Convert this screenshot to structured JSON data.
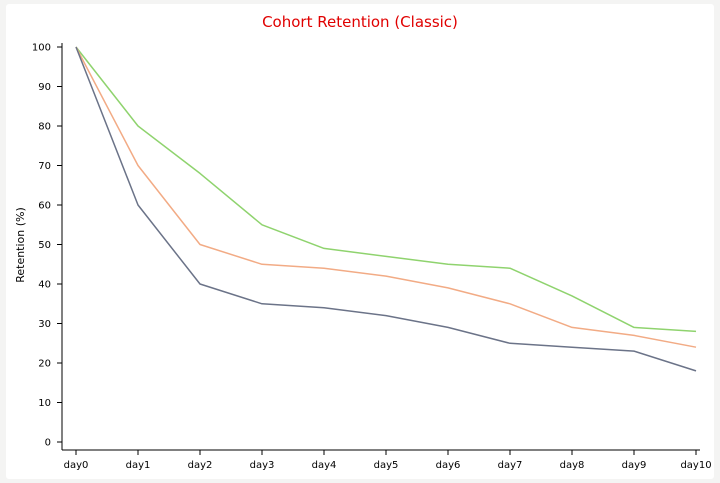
{
  "chart_data": {
    "type": "line",
    "title": "Cohort Retention (Classic)",
    "xlabel": "",
    "ylabel": "Retention (%)",
    "categories": [
      "day0",
      "day1",
      "day2",
      "day3",
      "day4",
      "day5",
      "day6",
      "day7",
      "day8",
      "day9",
      "day10"
    ],
    "ylim": [
      0,
      100
    ],
    "yticks": [
      0,
      10,
      20,
      30,
      40,
      50,
      60,
      70,
      80,
      90,
      100
    ],
    "grid": false,
    "series": [
      {
        "color": "#8fd36e",
        "values": [
          100,
          80,
          68,
          55,
          49,
          47,
          45,
          44,
          37,
          29,
          28
        ]
      },
      {
        "color": "#f2ab85",
        "values": [
          100,
          70,
          50,
          45,
          44,
          42,
          39,
          35,
          29,
          27,
          24
        ]
      },
      {
        "color": "#6b7388",
        "values": [
          100,
          60,
          40,
          35,
          34,
          32,
          29,
          25,
          24,
          23,
          18
        ]
      }
    ]
  }
}
